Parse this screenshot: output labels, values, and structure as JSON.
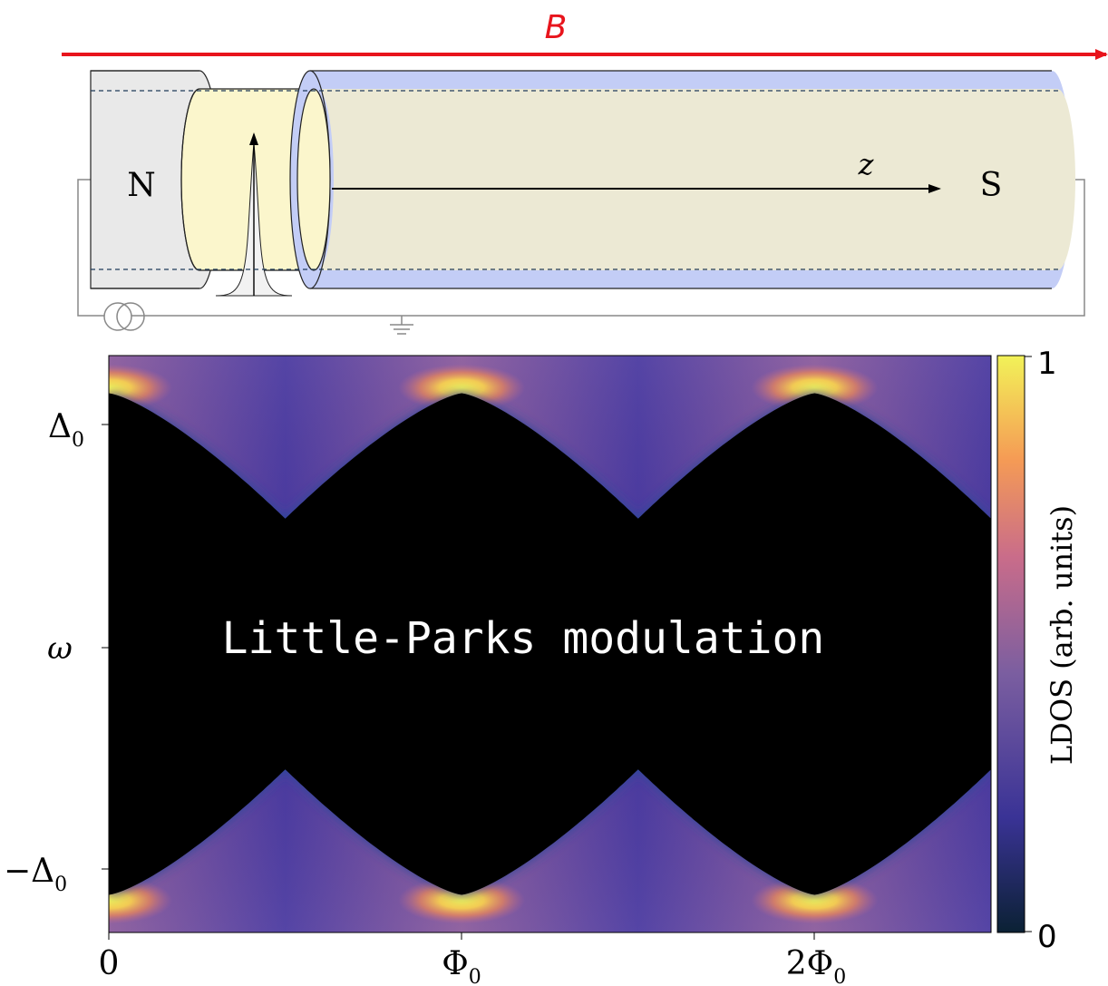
{
  "schematic": {
    "field_label": "B",
    "normal_lead_label": "N",
    "superconductor_label": "S",
    "axis_label": "z",
    "colors": {
      "field_arrow": "#e8141c",
      "normal_lead": "#e9e9e9",
      "interface": "#fbf6cc",
      "shell": "#c3cdf6",
      "core": "#ece9d4"
    }
  },
  "colormap_plot": {
    "overlay_text": "Little-Parks modulation",
    "y_label": "ω",
    "y_ticks": [
      "Δ",
      "−Δ"
    ],
    "y_tick_subscript": "0",
    "x_ticks": [
      "0",
      "Φ",
      "2Φ"
    ],
    "x_tick_subscript": "0",
    "colorbar_label": "LDOS (arb. units)",
    "colorbar_ticks": [
      "1",
      "0"
    ],
    "colormap": "thermal",
    "colormap_stops": [
      "#0b2134",
      "#3a3396",
      "#7b5ea0",
      "#c96c8a",
      "#f59b55",
      "#f2f258"
    ]
  },
  "chart_data": {
    "type": "heatmap",
    "title": "",
    "xlabel": "",
    "ylabel": "ω",
    "colorbar_label": "LDOS (arb. units)",
    "x_range_flux_quanta": [
      0,
      2.5
    ],
    "x_ticks": [
      {
        "value": 0,
        "label": "0"
      },
      {
        "value": 1,
        "label": "Φ0"
      },
      {
        "value": 2,
        "label": "2Φ0"
      }
    ],
    "y_range_delta0": [
      -1.15,
      1.15
    ],
    "y_ticks": [
      {
        "value": 1,
        "label": "Δ0"
      },
      {
        "value": 0,
        "label": "ω"
      },
      {
        "value": -1,
        "label": "−Δ0"
      }
    ],
    "colorbar_range": [
      0,
      1
    ],
    "gap_edge": {
      "description": "spectral gap edge versus flux",
      "flux": [
        0,
        0.5,
        1,
        1.5,
        2,
        2.5
      ],
      "omega_over_delta0": [
        1.0,
        0.5,
        1.0,
        0.5,
        1.0,
        0.5
      ]
    },
    "peaks_at_flux": [
      0,
      1,
      2
    ]
  }
}
